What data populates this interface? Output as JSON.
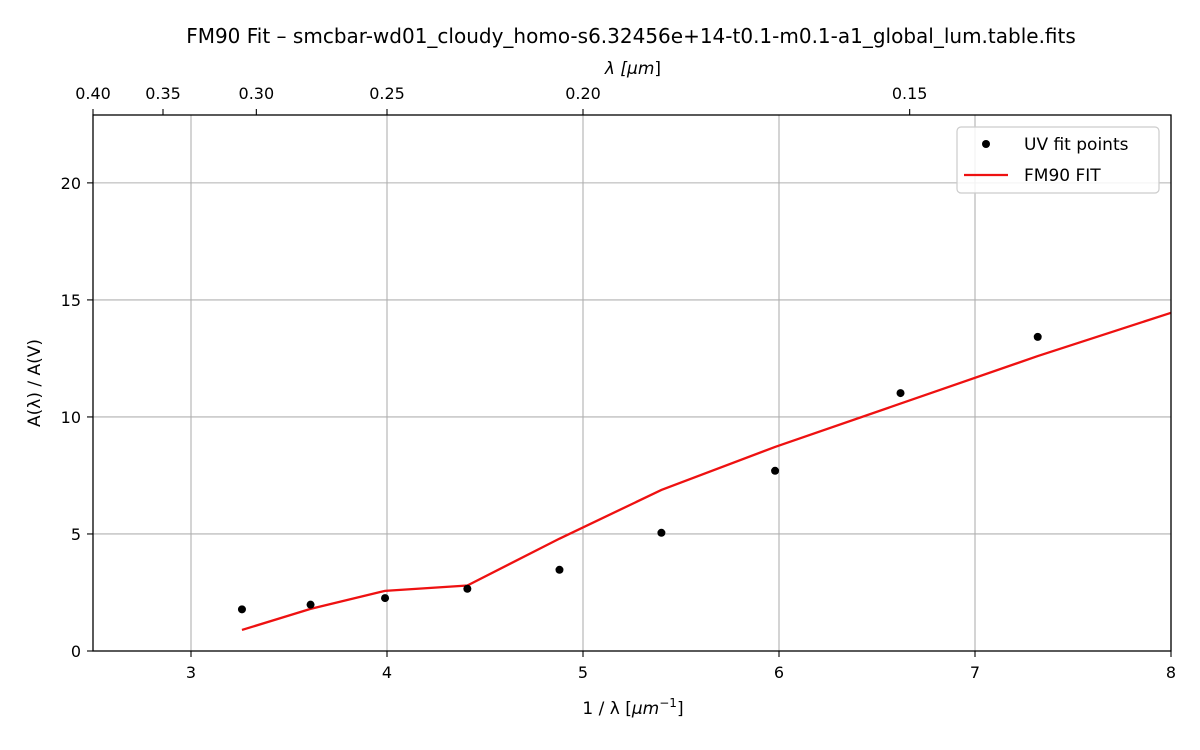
{
  "chart_data": {
    "type": "scatter+line",
    "title": "FM90 Fit – smcbar-wd01_cloudy_homo-s6.32456e+14-t0.1-m0.1-a1_global_lum.table.fits",
    "xlabel": "1 / λ [",
    "xlabel_unit": "μm",
    "xlabel_exp": "−1",
    "xlabel_close": "]",
    "ylabel": "A(λ) / A(V)",
    "top_xlabel": "λ [",
    "top_xlabel_unit": "μm",
    "top_xlabel_close": "]",
    "xlim": [
      2.5,
      8.0
    ],
    "ylim": [
      0,
      22.9
    ],
    "xticks": [
      3,
      4,
      5,
      6,
      7,
      8
    ],
    "yticks": [
      0,
      5,
      10,
      15,
      20
    ],
    "top_ticks_um": [
      0.4,
      0.35,
      0.3,
      0.25,
      0.2,
      0.15
    ],
    "top_tick_labels": [
      "0.40",
      "0.35",
      "0.30",
      "0.25",
      "0.20",
      "0.15"
    ],
    "grid": true,
    "legend_position": "top-right",
    "series": [
      {
        "name": "UV fit points",
        "kind": "scatter",
        "color": "#000000",
        "x": [
          3.26,
          3.61,
          3.99,
          4.41,
          4.88,
          5.4,
          5.98,
          6.62,
          7.32
        ],
        "y": [
          1.78,
          1.98,
          2.26,
          2.66,
          3.47,
          5.05,
          7.7,
          11.02,
          13.42
        ]
      },
      {
        "name": "FM90 FIT",
        "kind": "line",
        "color": "#ee1111",
        "x": [
          3.26,
          3.61,
          3.99,
          4.41,
          4.88,
          5.4,
          5.98,
          6.62,
          7.32,
          8.0
        ],
        "y": [
          0.9,
          1.8,
          2.57,
          2.8,
          4.8,
          6.88,
          8.72,
          10.57,
          12.6,
          14.45
        ]
      }
    ]
  }
}
